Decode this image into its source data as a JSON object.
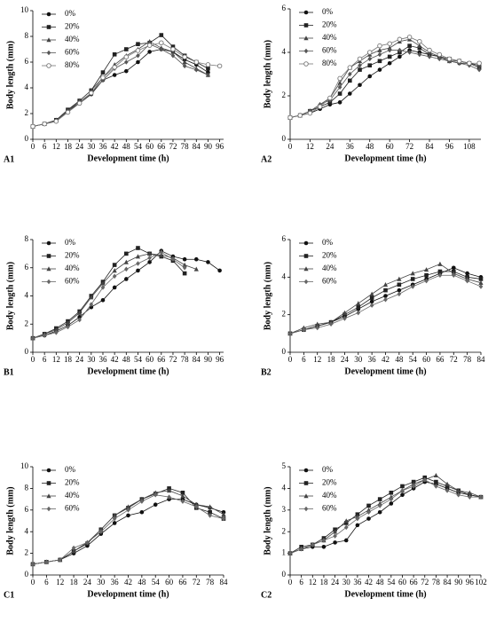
{
  "chart_data": [
    {
      "type": "line",
      "panel": "A1",
      "x_label": "Development time (h)",
      "y_label": "Body length (mm)",
      "x": [
        0,
        6,
        12,
        18,
        24,
        30,
        36,
        42,
        48,
        54,
        60,
        66,
        72,
        78,
        84,
        90,
        96
      ],
      "xlim": [
        0,
        98
      ],
      "xticks": [
        0,
        6,
        12,
        18,
        24,
        30,
        36,
        42,
        48,
        54,
        60,
        66,
        72,
        78,
        84,
        90,
        96
      ],
      "ylim": [
        0,
        10
      ],
      "yticks": [
        0,
        2,
        4,
        6,
        8,
        10
      ],
      "series": [
        {
          "name": "0%",
          "color": "#111111",
          "marker": "circle",
          "values": [
            1,
            1.2,
            1.4,
            2.2,
            2.8,
            3.5,
            4.6,
            5.0,
            5.3,
            6.0,
            6.8,
            7.0,
            6.8,
            6.2,
            5.8,
            5.2,
            null
          ]
        },
        {
          "name": "20%",
          "color": "#222222",
          "marker": "square",
          "values": [
            1,
            1.2,
            1.5,
            2.3,
            3.0,
            3.8,
            5.2,
            6.6,
            7.0,
            7.4,
            7.5,
            8.1,
            7.2,
            6.5,
            6.0,
            5.5,
            null
          ]
        },
        {
          "name": "40%",
          "color": "#444444",
          "marker": "triangle",
          "values": [
            1,
            1.2,
            1.5,
            2.2,
            3.0,
            3.8,
            4.8,
            5.8,
            6.5,
            7.0,
            7.6,
            7.1,
            6.8,
            6.0,
            5.5,
            5.0,
            null
          ]
        },
        {
          "name": "60%",
          "color": "#555555",
          "marker": "diamond",
          "values": [
            1,
            1.2,
            1.4,
            2.2,
            2.9,
            3.6,
            4.6,
            5.5,
            6.0,
            6.5,
            7.4,
            7.0,
            6.5,
            5.7,
            5.4,
            5.0,
            null
          ]
        },
        {
          "name": "80%",
          "color": "#777777",
          "marker": "open-circle",
          "values": [
            1,
            1.2,
            1.4,
            2.1,
            2.8,
            3.6,
            4.8,
            5.6,
            6.4,
            6.9,
            7.3,
            7.5,
            7.0,
            6.4,
            6.0,
            5.8,
            5.7
          ]
        }
      ]
    },
    {
      "type": "line",
      "panel": "A2",
      "x_label": "Development time (h)",
      "y_label": "Body length (mm)",
      "x": [
        0,
        6,
        12,
        18,
        24,
        30,
        36,
        42,
        48,
        54,
        60,
        66,
        72,
        78,
        84,
        90,
        96,
        102,
        108,
        114
      ],
      "xlim": [
        0,
        115
      ],
      "xticks": [
        0,
        12,
        24,
        36,
        48,
        60,
        72,
        84,
        96,
        108
      ],
      "ylim": [
        0,
        6
      ],
      "yticks": [
        0,
        2,
        4,
        6
      ],
      "series": [
        {
          "name": "0%",
          "color": "#111111",
          "marker": "circle",
          "values": [
            1,
            1.1,
            1.2,
            1.4,
            1.6,
            1.7,
            2.1,
            2.5,
            2.9,
            3.2,
            3.5,
            3.8,
            4.1,
            4.0,
            3.9,
            3.8,
            3.6,
            3.5,
            3.5,
            3.4
          ]
        },
        {
          "name": "20%",
          "color": "#222222",
          "marker": "square",
          "values": [
            1,
            1.1,
            1.3,
            1.5,
            1.7,
            2.1,
            2.7,
            3.2,
            3.4,
            3.6,
            3.8,
            4.0,
            4.3,
            4.2,
            3.9,
            3.8,
            3.7,
            3.6,
            3.5,
            3.3
          ]
        },
        {
          "name": "40%",
          "color": "#444444",
          "marker": "triangle",
          "values": [
            1,
            1.1,
            1.3,
            1.6,
            1.9,
            2.6,
            3.3,
            3.6,
            3.9,
            4.1,
            4.2,
            4.5,
            4.6,
            4.3,
            4.0,
            3.8,
            3.6,
            3.6,
            3.5,
            3.4
          ]
        },
        {
          "name": "60%",
          "color": "#555555",
          "marker": "diamond",
          "values": [
            1,
            1.1,
            1.3,
            1.6,
            1.8,
            2.4,
            3.0,
            3.4,
            3.7,
            3.9,
            4.1,
            4.1,
            4.0,
            3.9,
            3.8,
            3.7,
            3.6,
            3.5,
            3.4,
            3.2
          ]
        },
        {
          "name": "80%",
          "color": "#777777",
          "marker": "open-circle",
          "values": [
            1,
            1.1,
            1.2,
            1.5,
            1.9,
            2.8,
            3.3,
            3.7,
            4.0,
            4.3,
            4.4,
            4.6,
            4.7,
            4.5,
            4.1,
            3.9,
            3.7,
            3.6,
            3.5,
            3.5
          ]
        }
      ]
    },
    {
      "type": "line",
      "panel": "B1",
      "x_label": "Development time (h)",
      "y_label": "Body length (mm)",
      "x": [
        0,
        6,
        12,
        18,
        24,
        30,
        36,
        42,
        48,
        54,
        60,
        66,
        72,
        78,
        84,
        90,
        96
      ],
      "xlim": [
        0,
        98
      ],
      "xticks": [
        0,
        6,
        12,
        18,
        24,
        30,
        36,
        42,
        48,
        54,
        60,
        66,
        72,
        78,
        84,
        90,
        96
      ],
      "ylim": [
        0,
        8
      ],
      "yticks": [
        0,
        2,
        4,
        6,
        8
      ],
      "series": [
        {
          "name": "0%",
          "color": "#111111",
          "marker": "circle",
          "values": [
            1,
            1.2,
            1.5,
            1.9,
            2.5,
            3.2,
            3.7,
            4.6,
            5.2,
            5.8,
            6.4,
            7.2,
            6.8,
            6.6,
            6.6,
            6.4,
            5.8
          ]
        },
        {
          "name": "20%",
          "color": "#222222",
          "marker": "square",
          "values": [
            1,
            1.3,
            1.7,
            2.2,
            2.9,
            4.0,
            5.0,
            6.2,
            7.0,
            7.4,
            7.0,
            6.8,
            6.5,
            5.6,
            null,
            null,
            null
          ]
        },
        {
          "name": "40%",
          "color": "#444444",
          "marker": "triangle",
          "values": [
            1,
            1.3,
            1.6,
            2.1,
            2.8,
            3.9,
            4.9,
            5.8,
            6.4,
            6.8,
            7.0,
            6.9,
            6.7,
            6.2,
            5.9,
            null,
            null
          ]
        },
        {
          "name": "60%",
          "color": "#666666",
          "marker": "diamond",
          "values": [
            1,
            1.2,
            1.4,
            1.8,
            2.3,
            3.4,
            4.6,
            5.4,
            5.9,
            6.3,
            6.7,
            7.1,
            6.6,
            6.0,
            null,
            null,
            null
          ]
        }
      ]
    },
    {
      "type": "line",
      "panel": "B2",
      "x_label": "Development time (h)",
      "y_label": "Body length (mm)",
      "x": [
        0,
        6,
        12,
        18,
        24,
        30,
        36,
        42,
        48,
        54,
        60,
        66,
        72,
        78,
        84
      ],
      "xlim": [
        0,
        84
      ],
      "xticks": [
        0,
        6,
        12,
        18,
        24,
        30,
        36,
        42,
        48,
        54,
        60,
        66,
        72,
        78,
        84
      ],
      "ylim": [
        0,
        6
      ],
      "yticks": [
        0,
        2,
        4,
        6
      ],
      "series": [
        {
          "name": "0%",
          "color": "#111111",
          "marker": "circle",
          "values": [
            1,
            1.2,
            1.4,
            1.6,
            1.9,
            2.3,
            2.7,
            3.0,
            3.3,
            3.6,
            3.9,
            4.2,
            4.5,
            4.2,
            4.0
          ]
        },
        {
          "name": "20%",
          "color": "#222222",
          "marker": "square",
          "values": [
            1,
            1.2,
            1.4,
            1.6,
            2.0,
            2.4,
            2.9,
            3.3,
            3.6,
            3.9,
            4.1,
            4.3,
            4.3,
            4.0,
            3.9
          ]
        },
        {
          "name": "40%",
          "color": "#444444",
          "marker": "triangle",
          "values": [
            1,
            1.3,
            1.5,
            1.6,
            2.1,
            2.6,
            3.1,
            3.6,
            3.9,
            4.2,
            4.4,
            4.7,
            4.2,
            3.9,
            3.7
          ]
        },
        {
          "name": "60%",
          "color": "#666666",
          "marker": "diamond",
          "values": [
            1,
            1.2,
            1.3,
            1.5,
            1.8,
            2.1,
            2.5,
            2.8,
            3.1,
            3.5,
            3.8,
            4.1,
            4.1,
            3.8,
            3.5
          ]
        }
      ]
    },
    {
      "type": "line",
      "panel": "C1",
      "x_label": "Development time (h)",
      "y_label": "Body length (mm)",
      "x": [
        0,
        6,
        12,
        18,
        24,
        30,
        36,
        42,
        48,
        54,
        60,
        66,
        72,
        78,
        84
      ],
      "xlim": [
        0,
        84
      ],
      "xticks": [
        0,
        6,
        12,
        18,
        24,
        30,
        36,
        42,
        48,
        54,
        60,
        66,
        72,
        78,
        84
      ],
      "ylim": [
        0,
        10
      ],
      "yticks": [
        0,
        2,
        4,
        6,
        8,
        10
      ],
      "series": [
        {
          "name": "0%",
          "color": "#111111",
          "marker": "circle",
          "values": [
            1,
            1.2,
            1.4,
            2.0,
            2.7,
            3.8,
            4.8,
            5.5,
            5.8,
            6.5,
            7.0,
            7.0,
            6.5,
            6.2,
            5.8
          ]
        },
        {
          "name": "20%",
          "color": "#222222",
          "marker": "square",
          "values": [
            1,
            1.2,
            1.4,
            2.2,
            2.9,
            4.2,
            5.5,
            6.2,
            7.0,
            7.5,
            8.0,
            7.6,
            6.2,
            5.8,
            5.2
          ]
        },
        {
          "name": "40%",
          "color": "#444444",
          "marker": "triangle",
          "values": [
            1,
            1.2,
            1.4,
            2.2,
            3.0,
            4.2,
            5.5,
            6.3,
            7.0,
            7.6,
            7.8,
            7.3,
            6.5,
            6.3,
            5.6
          ]
        },
        {
          "name": "60%",
          "color": "#666666",
          "marker": "diamond",
          "values": [
            1,
            1.2,
            1.4,
            2.5,
            3.0,
            4.0,
            5.2,
            6.0,
            6.8,
            7.4,
            7.2,
            6.8,
            6.3,
            5.5,
            5.2
          ]
        }
      ]
    },
    {
      "type": "line",
      "panel": "C2",
      "x_label": "Development time (h)",
      "y_label": "Body length (mm)",
      "x": [
        0,
        6,
        12,
        18,
        24,
        30,
        36,
        42,
        48,
        54,
        60,
        66,
        72,
        78,
        84,
        90,
        96,
        102
      ],
      "xlim": [
        0,
        102
      ],
      "xticks": [
        0,
        6,
        12,
        18,
        24,
        30,
        36,
        42,
        48,
        54,
        60,
        66,
        72,
        78,
        84,
        90,
        96,
        102
      ],
      "ylim": [
        0,
        5
      ],
      "yticks": [
        0,
        1,
        2,
        3,
        4,
        5
      ],
      "series": [
        {
          "name": "0%",
          "color": "#111111",
          "marker": "circle",
          "values": [
            1,
            1.2,
            1.3,
            1.3,
            1.5,
            1.6,
            2.3,
            2.6,
            2.9,
            3.3,
            3.7,
            4.0,
            4.3,
            4.2,
            4.0,
            3.8,
            3.7,
            3.6
          ]
        },
        {
          "name": "20%",
          "color": "#222222",
          "marker": "square",
          "values": [
            1,
            1.3,
            1.4,
            1.7,
            2.1,
            2.4,
            2.8,
            3.2,
            3.5,
            3.8,
            4.1,
            4.3,
            4.5,
            4.3,
            4.1,
            3.9,
            3.7,
            3.6
          ]
        },
        {
          "name": "40%",
          "color": "#444444",
          "marker": "triangle",
          "values": [
            1,
            1.2,
            1.4,
            1.6,
            2.0,
            2.5,
            2.7,
            3.0,
            3.3,
            3.6,
            3.9,
            4.2,
            4.4,
            4.6,
            4.2,
            3.9,
            3.8,
            3.6
          ]
        },
        {
          "name": "60%",
          "color": "#666666",
          "marker": "diamond",
          "values": [
            1,
            1.2,
            1.4,
            1.6,
            1.8,
            2.2,
            2.6,
            2.9,
            3.2,
            3.5,
            3.9,
            4.1,
            4.4,
            4.1,
            3.9,
            3.7,
            3.6,
            3.6
          ]
        }
      ]
    }
  ]
}
